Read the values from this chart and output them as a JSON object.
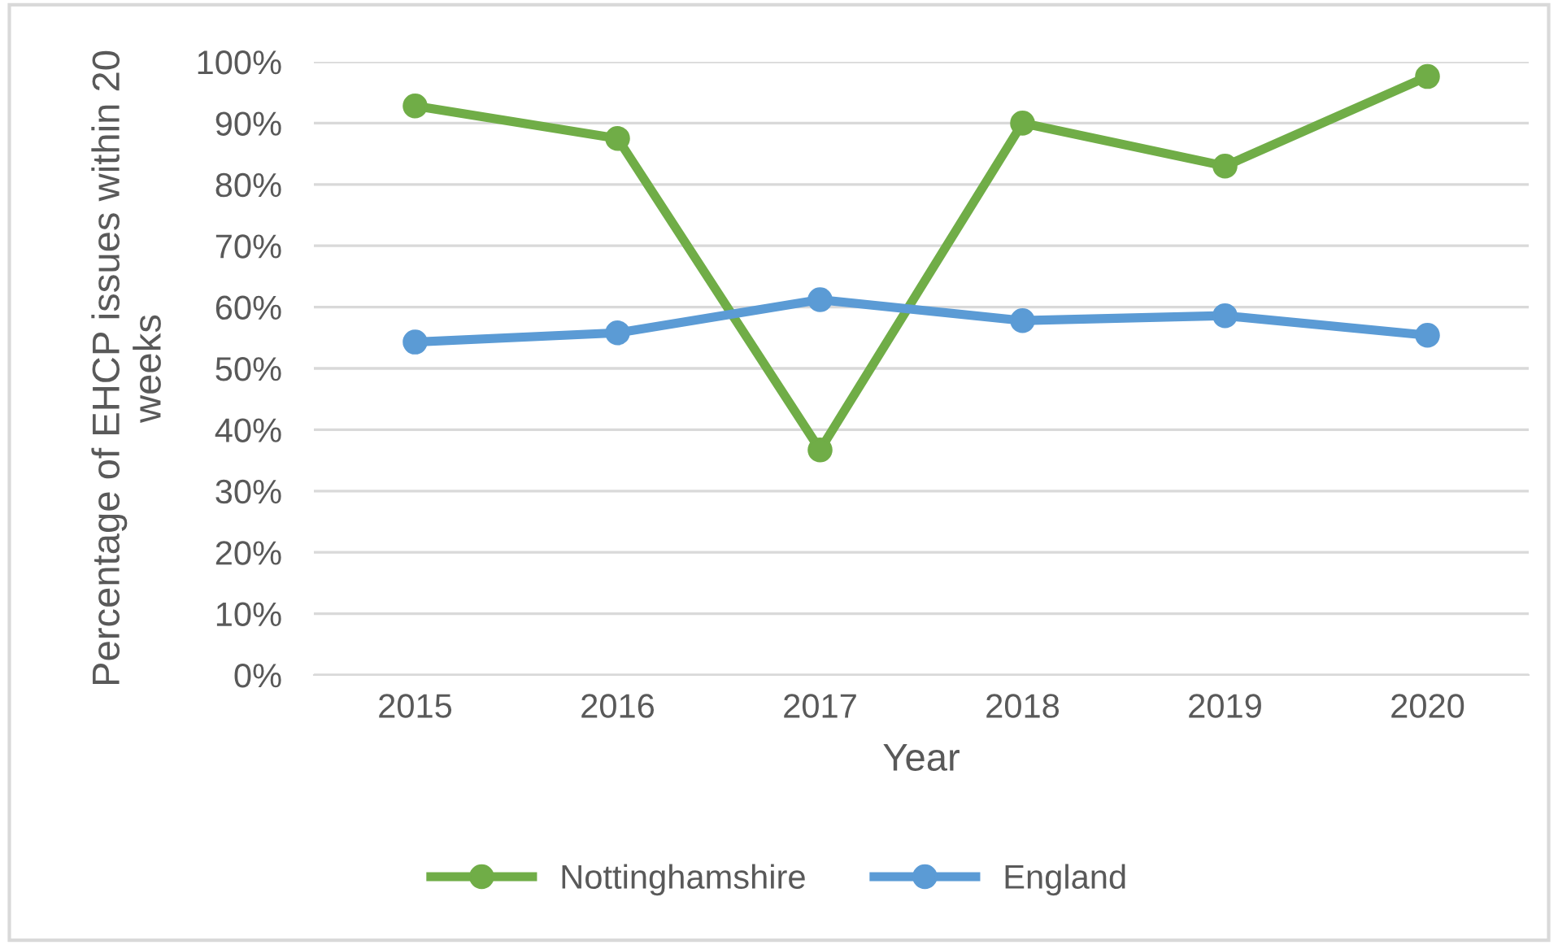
{
  "chart_data": {
    "type": "line",
    "xlabel": "Year",
    "ylabel": "Percentage of EHCP issues within 20\nweeks",
    "categories": [
      "2015",
      "2016",
      "2017",
      "2018",
      "2019",
      "2020"
    ],
    "series": [
      {
        "name": "Nottinghamshire",
        "color": "#70ad47",
        "values": [
          92.8,
          87.5,
          36.7,
          90,
          83,
          97.6
        ]
      },
      {
        "name": "England",
        "color": "#5b9bd5",
        "values": [
          54.3,
          55.8,
          61.2,
          57.8,
          58.6,
          55.4
        ]
      }
    ],
    "ylim": [
      0,
      100
    ],
    "yticks": [
      {
        "value": 0,
        "label": "0%"
      },
      {
        "value": 10,
        "label": "10%"
      },
      {
        "value": 20,
        "label": "20%"
      },
      {
        "value": 30,
        "label": "30%"
      },
      {
        "value": 40,
        "label": "40%"
      },
      {
        "value": 50,
        "label": "50%"
      },
      {
        "value": 60,
        "label": "60%"
      },
      {
        "value": 70,
        "label": "70%"
      },
      {
        "value": 80,
        "label": "80%"
      },
      {
        "value": 90,
        "label": "90%"
      },
      {
        "value": 100,
        "label": "100%"
      }
    ],
    "grid": "y",
    "legend": "bottom",
    "marker": "circle",
    "line_style": "solid"
  }
}
